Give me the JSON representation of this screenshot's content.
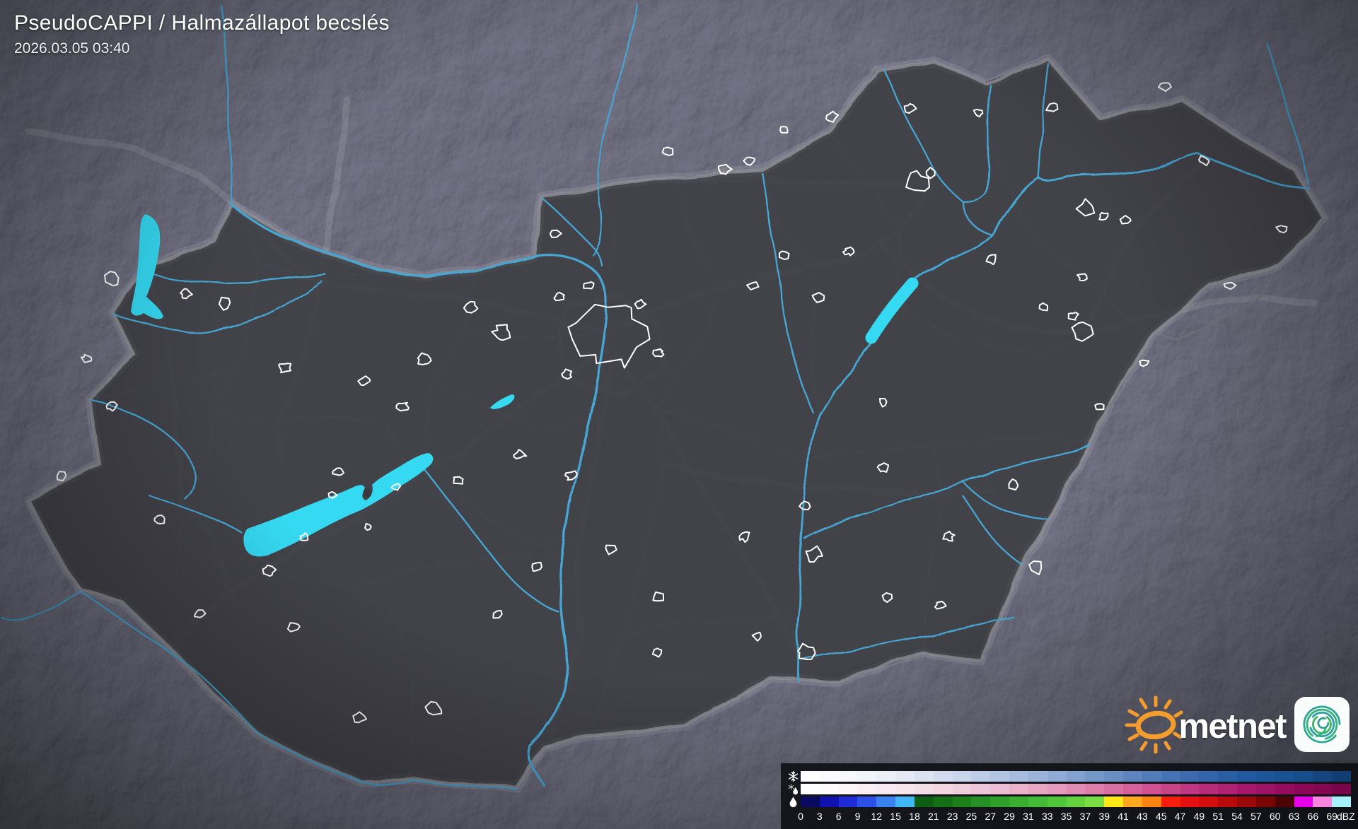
{
  "header": {
    "product": "PseudoCAPPI  / Halmazállapot becslés",
    "timestamp": "2026.03.05 03:40"
  },
  "branding": {
    "wordmark": "metnet",
    "sun_color": "#f59d2c",
    "swirl_colors": [
      "#35b37d",
      "#2ca695",
      "#3db45e",
      "#28a0a8",
      "#2f9e8f"
    ]
  },
  "legend": {
    "unit": "dBZ",
    "tick_labels": [
      "0",
      "3",
      "6",
      "9",
      "12",
      "15",
      "18",
      "21",
      "23",
      "25",
      "27",
      "29",
      "31",
      "33",
      "35",
      "37",
      "39",
      "41",
      "43",
      "45",
      "47",
      "49",
      "51",
      "54",
      "57",
      "60",
      "63",
      "66",
      "69",
      "dBZ"
    ],
    "rows": [
      {
        "name": "snow",
        "icon": "snowflake-icon",
        "stops": [
          "#ffffff",
          "#f4f6fb",
          "#e4e9f4",
          "#ccd8ec",
          "#b0c4e2",
          "#92add6",
          "#7295c8",
          "#537cba",
          "#3768ac",
          "#22599e",
          "#175190",
          "#123d72"
        ]
      },
      {
        "name": "mixed",
        "icon": "sleet-icon",
        "stops": [
          "#ffffff",
          "#fbf3f6",
          "#f6e4eb",
          "#f1d2de",
          "#ecbcd0",
          "#e59fbd",
          "#dd7ba8",
          "#d05492",
          "#bd317d",
          "#a8186a",
          "#91095a",
          "#7a044a"
        ]
      },
      {
        "name": "rain",
        "icon": "raindrop-icon",
        "colors": [
          "#0a0a5e",
          "#1111b2",
          "#1f2bd4",
          "#2d51e8",
          "#3b82f0",
          "#41b6f4",
          "#0e5e12",
          "#157015",
          "#1d801b",
          "#259023",
          "#2e9f2a",
          "#38af31",
          "#44bb36",
          "#52c63a",
          "#64d13e",
          "#7add44",
          "#ffe818",
          "#ffa81e",
          "#ff8312",
          "#f71f0c",
          "#e61010",
          "#d20e0e",
          "#b70b0b",
          "#9a0808",
          "#7a0505",
          "#4d0303",
          "#e800e8",
          "#fb86de",
          "#a6f1fa"
        ]
      }
    ]
  },
  "map": {
    "colors": {
      "lake": "#35d9f2",
      "river": "#46a5d2",
      "country_border": "#8f9096",
      "border_halo": "rgba(215,217,225,0.18)",
      "county_border": "#75767c",
      "highway": "rgba(235,235,242,0.12)",
      "city_outline": "#ffffff",
      "land_inside": "#42434a",
      "land_outside": "#26262c"
    }
  }
}
